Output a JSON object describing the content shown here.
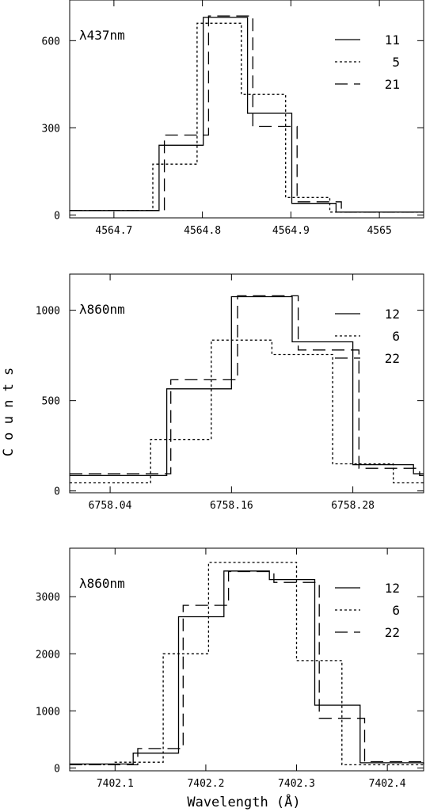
{
  "chart_data": {
    "ylabel": "C o u n t s",
    "xlabel": "Wavelength (Å)",
    "panels": [
      {
        "type": "line",
        "label": "λ437nm",
        "xlim": [
          4564.65,
          4565.05
        ],
        "ylim": [
          -10,
          740
        ],
        "xticks": [
          4564.7,
          4564.8,
          4564.9,
          4565.0
        ],
        "xtick_labels": [
          "4564.7",
          "4564.8",
          "4564.9",
          "4565"
        ],
        "yticks": [
          0,
          300,
          600
        ],
        "ytick_labels": [
          "0",
          "300",
          "600"
        ],
        "series": [
          {
            "name": "11",
            "style": "solid",
            "x": [
              4564.65,
              4564.751,
              4564.801,
              4564.851,
              4564.901,
              4564.951,
              4565.05
            ],
            "y": [
              15,
              240,
              680,
              350,
              40,
              10,
              10
            ]
          },
          {
            "name": "5",
            "style": "dotted",
            "x": [
              4564.65,
              4564.744,
              4564.794,
              4564.844,
              4564.894,
              4564.944,
              4565.05
            ],
            "y": [
              15,
              175,
              660,
              415,
              60,
              10,
              10
            ]
          },
          {
            "name": "21",
            "style": "dashed",
            "x": [
              4564.65,
              4564.757,
              4564.807,
              4564.857,
              4564.907,
              4564.957,
              4565.05
            ],
            "y": [
              15,
              275,
              685,
              305,
              45,
              10,
              10
            ]
          }
        ]
      },
      {
        "type": "line",
        "label": "λ860nm",
        "xlim": [
          6758.0,
          6758.35
        ],
        "ylim": [
          -10,
          1200
        ],
        "xticks": [
          6758.04,
          6758.16,
          6758.28
        ],
        "xtick_labels": [
          "6758.04",
          "6758.16",
          "6758.28"
        ],
        "yticks": [
          0,
          500,
          1000
        ],
        "ytick_labels": [
          "0",
          "500",
          "1000"
        ],
        "series": [
          {
            "name": "12",
            "style": "solid",
            "x": [
              6758.0,
              6758.096,
              6758.16,
              6758.22,
              6758.28,
              6758.34,
              6758.35
            ],
            "y": [
              85,
              565,
              1075,
              825,
              145,
              95,
              95
            ]
          },
          {
            "name": "6",
            "style": "dotted",
            "x": [
              6758.0,
              6758.08,
              6758.14,
              6758.2,
              6758.26,
              6758.32,
              6758.35
            ],
            "y": [
              45,
              285,
              835,
              755,
              150,
              45,
              45
            ]
          },
          {
            "name": "22",
            "style": "dashed",
            "x": [
              6758.0,
              6758.1,
              6758.166,
              6758.226,
              6758.286,
              6758.346,
              6758.35
            ],
            "y": [
              95,
              615,
              1080,
              780,
              125,
              85,
              85
            ]
          }
        ]
      },
      {
        "type": "line",
        "label": "λ860nm",
        "xlim": [
          7402.05,
          7402.44
        ],
        "ylim": [
          -50,
          3850
        ],
        "xticks": [
          7402.1,
          7402.2,
          7402.3,
          7402.4
        ],
        "xtick_labels": [
          "7402.1",
          "7402.2",
          "7402.3",
          "7402.4"
        ],
        "yticks": [
          0,
          1000,
          2000,
          3000
        ],
        "ytick_labels": [
          "0",
          "1000",
          "2000",
          "3000"
        ],
        "series": [
          {
            "name": "12",
            "style": "solid",
            "x": [
              7402.05,
              7402.12,
              7402.17,
              7402.22,
              7402.27,
              7402.32,
              7402.37,
              7402.44
            ],
            "y": [
              70,
              260,
              2650,
              3450,
              3300,
              1100,
              90,
              60
            ]
          },
          {
            "name": "6",
            "style": "dotted",
            "x": [
              7402.05,
              7402.1,
              7402.153,
              7402.203,
              7402.3,
              7402.35,
              7402.44
            ],
            "y": [
              55,
              100,
              2000,
              3600,
              1880,
              55,
              55
            ]
          },
          {
            "name": "22",
            "style": "dashed",
            "x": [
              7402.05,
              7402.125,
              7402.175,
              7402.225,
              7402.275,
              7402.325,
              7402.375,
              7402.44
            ],
            "y": [
              55,
              340,
              2850,
              3440,
              3250,
              870,
              110,
              50
            ]
          }
        ]
      }
    ]
  }
}
